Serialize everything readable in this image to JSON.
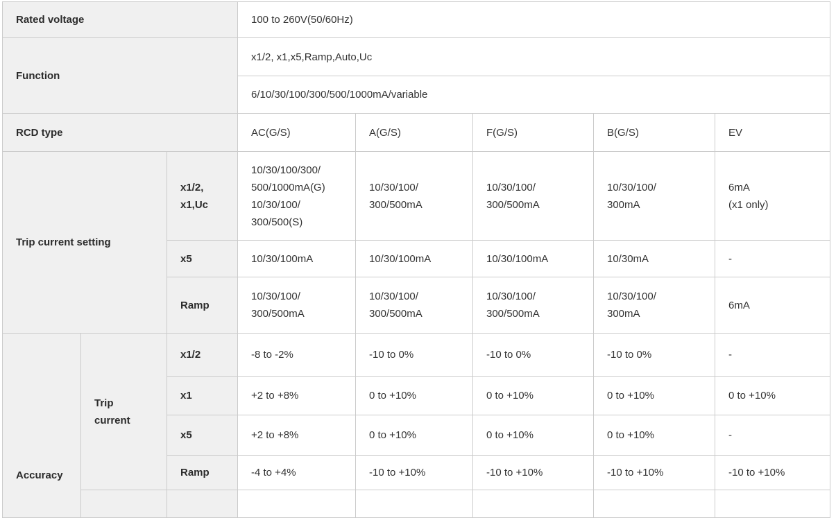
{
  "colors": {
    "header_bg": "#f0f0f0",
    "border": "#cbcbcb",
    "text": "#333333",
    "header_text": "#2b2b2b"
  },
  "table": {
    "rcd_type_columns": [
      "AC(G/S)",
      "A(G/S)",
      "F(G/S)",
      "B(G/S)",
      "EV"
    ],
    "cells": [
      {
        "r": 1,
        "c": 1,
        "cs": 3,
        "kind": "header",
        "name": "header-rated-voltage",
        "text": "Rated voltage"
      },
      {
        "r": 1,
        "c": 4,
        "cs": 5,
        "kind": "data",
        "name": "value-rated-voltage",
        "text": "100 to 260V(50/60Hz)"
      },
      {
        "r": 2,
        "c": 1,
        "rs": 2,
        "cs": 3,
        "kind": "header",
        "name": "header-function",
        "text": "Function"
      },
      {
        "r": 2,
        "c": 4,
        "cs": 5,
        "kind": "data",
        "name": "value-function-modes",
        "text": "x1/2, x1,x5,Ramp,Auto,Uc"
      },
      {
        "r": 3,
        "c": 4,
        "cs": 5,
        "kind": "data",
        "name": "value-function-currents",
        "text": "6/10/30/100/300/500/1000mA/variable"
      },
      {
        "r": 4,
        "c": 1,
        "cs": 3,
        "kind": "header",
        "name": "header-rcd-type",
        "text": "RCD type"
      },
      {
        "r": 4,
        "c": 4,
        "kind": "data",
        "name": "column-rcd-ac",
        "text": "AC(G/S)"
      },
      {
        "r": 4,
        "c": 5,
        "kind": "data",
        "name": "column-rcd-a",
        "text": "A(G/S)"
      },
      {
        "r": 4,
        "c": 6,
        "kind": "data",
        "name": "column-rcd-f",
        "text": "F(G/S)"
      },
      {
        "r": 4,
        "c": 7,
        "kind": "data",
        "name": "column-rcd-b",
        "text": "B(G/S)"
      },
      {
        "r": 4,
        "c": 8,
        "kind": "data",
        "name": "column-rcd-ev",
        "text": "EV"
      },
      {
        "r": 5,
        "c": 1,
        "rs": 3,
        "cs": 2,
        "kind": "header",
        "name": "header-trip-current-setting",
        "text": "Trip current setting"
      },
      {
        "r": 5,
        "c": 3,
        "kind": "header",
        "name": "subheader-setting-x12-x1-uc",
        "text": "x1/2,\nx1,Uc"
      },
      {
        "r": 5,
        "c": 4,
        "kind": "data",
        "name": "setting-x12-ac",
        "text": "10/30/100/300/\n500/1000mA(G)\n10/30/100/\n300/500(S)"
      },
      {
        "r": 5,
        "c": 5,
        "kind": "data",
        "name": "setting-x12-a",
        "text": "10/30/100/\n300/500mA"
      },
      {
        "r": 5,
        "c": 6,
        "kind": "data",
        "name": "setting-x12-f",
        "text": "10/30/100/\n300/500mA"
      },
      {
        "r": 5,
        "c": 7,
        "kind": "data",
        "name": "setting-x12-b",
        "text": "10/30/100/\n300mA"
      },
      {
        "r": 5,
        "c": 8,
        "kind": "data",
        "name": "setting-x12-ev",
        "text": "6mA\n(x1 only)"
      },
      {
        "r": 6,
        "c": 3,
        "kind": "header",
        "name": "subheader-setting-x5",
        "text": "x5"
      },
      {
        "r": 6,
        "c": 4,
        "kind": "data",
        "name": "setting-x5-ac",
        "text": "10/30/100mA"
      },
      {
        "r": 6,
        "c": 5,
        "kind": "data",
        "name": "setting-x5-a",
        "text": "10/30/100mA"
      },
      {
        "r": 6,
        "c": 6,
        "kind": "data",
        "name": "setting-x5-f",
        "text": "10/30/100mA"
      },
      {
        "r": 6,
        "c": 7,
        "kind": "data",
        "name": "setting-x5-b",
        "text": "10/30mA"
      },
      {
        "r": 6,
        "c": 8,
        "kind": "data",
        "name": "setting-x5-ev",
        "text": "-"
      },
      {
        "r": 7,
        "c": 3,
        "kind": "header",
        "name": "subheader-setting-ramp",
        "text": "Ramp"
      },
      {
        "r": 7,
        "c": 4,
        "kind": "data",
        "name": "setting-ramp-ac",
        "text": "10/30/100/\n300/500mA"
      },
      {
        "r": 7,
        "c": 5,
        "kind": "data",
        "name": "setting-ramp-a",
        "text": "10/30/100/\n300/500mA"
      },
      {
        "r": 7,
        "c": 6,
        "kind": "data",
        "name": "setting-ramp-f",
        "text": "10/30/100/\n300/500mA"
      },
      {
        "r": 7,
        "c": 7,
        "kind": "data",
        "name": "setting-ramp-b",
        "text": "10/30/100/\n300mA"
      },
      {
        "r": 7,
        "c": 8,
        "kind": "data",
        "name": "setting-ramp-ev",
        "text": "6mA"
      },
      {
        "r": 8,
        "c": 1,
        "rs": 5,
        "kind": "header",
        "name": "header-accuracy",
        "anchor": "bottom",
        "text": "Accuracy"
      },
      {
        "r": 8,
        "c": 2,
        "rs": 4,
        "kind": "header",
        "name": "header-trip-current",
        "text": "Trip\ncurrent"
      },
      {
        "r": 8,
        "c": 3,
        "kind": "header",
        "name": "subheader-accuracy-x12",
        "text": "x1/2"
      },
      {
        "r": 8,
        "c": 4,
        "kind": "data",
        "name": "accuracy-x12-ac",
        "text": "-8 to -2%"
      },
      {
        "r": 8,
        "c": 5,
        "kind": "data",
        "name": "accuracy-x12-a",
        "text": "-10 to 0%"
      },
      {
        "r": 8,
        "c": 6,
        "kind": "data",
        "name": "accuracy-x12-f",
        "text": "-10 to 0%"
      },
      {
        "r": 8,
        "c": 7,
        "kind": "data",
        "name": "accuracy-x12-b",
        "text": "-10 to 0%"
      },
      {
        "r": 8,
        "c": 8,
        "kind": "data",
        "name": "accuracy-x12-ev",
        "text": "-"
      },
      {
        "r": 9,
        "c": 3,
        "kind": "header",
        "name": "subheader-accuracy-x1",
        "text": "x1"
      },
      {
        "r": 9,
        "c": 4,
        "kind": "data",
        "name": "accuracy-x1-ac",
        "text": "+2 to +8%"
      },
      {
        "r": 9,
        "c": 5,
        "kind": "data",
        "name": "accuracy-x1-a",
        "text": "0 to +10%"
      },
      {
        "r": 9,
        "c": 6,
        "kind": "data",
        "name": "accuracy-x1-f",
        "text": "0 to +10%"
      },
      {
        "r": 9,
        "c": 7,
        "kind": "data",
        "name": "accuracy-x1-b",
        "text": "0 to +10%"
      },
      {
        "r": 9,
        "c": 8,
        "kind": "data",
        "name": "accuracy-x1-ev",
        "text": "0 to +10%"
      },
      {
        "r": 10,
        "c": 3,
        "kind": "header",
        "name": "subheader-accuracy-x5",
        "text": "x5"
      },
      {
        "r": 10,
        "c": 4,
        "kind": "data",
        "name": "accuracy-x5-ac",
        "text": "+2 to +8%"
      },
      {
        "r": 10,
        "c": 5,
        "kind": "data",
        "name": "accuracy-x5-a",
        "text": "0 to +10%"
      },
      {
        "r": 10,
        "c": 6,
        "kind": "data",
        "name": "accuracy-x5-f",
        "text": "0 to +10%"
      },
      {
        "r": 10,
        "c": 7,
        "kind": "data",
        "name": "accuracy-x5-b",
        "text": "0 to +10%"
      },
      {
        "r": 10,
        "c": 8,
        "kind": "data",
        "name": "accuracy-x5-ev",
        "text": "-"
      },
      {
        "r": 11,
        "c": 3,
        "kind": "header",
        "name": "subheader-accuracy-ramp",
        "text": "Ramp"
      },
      {
        "r": 11,
        "c": 4,
        "kind": "data",
        "name": "accuracy-ramp-ac",
        "text": "-4 to +4%"
      },
      {
        "r": 11,
        "c": 5,
        "kind": "data",
        "name": "accuracy-ramp-a",
        "text": "-10 to +10%"
      },
      {
        "r": 11,
        "c": 6,
        "kind": "data",
        "name": "accuracy-ramp-f",
        "text": "-10 to +10%"
      },
      {
        "r": 11,
        "c": 7,
        "kind": "data",
        "name": "accuracy-ramp-b",
        "text": "-10 to +10%"
      },
      {
        "r": 11,
        "c": 8,
        "kind": "data",
        "name": "accuracy-ramp-ev",
        "text": "-10 to +10%"
      },
      {
        "r": 12,
        "c": 2,
        "kind": "header",
        "name": "clipped-header-cell-1",
        "text": ""
      },
      {
        "r": 12,
        "c": 3,
        "kind": "header",
        "name": "clipped-header-cell-2",
        "text": ""
      },
      {
        "r": 12,
        "c": 4,
        "kind": "data",
        "name": "clipped-data-cell-ac",
        "text": ""
      },
      {
        "r": 12,
        "c": 5,
        "kind": "data",
        "name": "clipped-data-cell-a",
        "text": ""
      },
      {
        "r": 12,
        "c": 6,
        "kind": "data",
        "name": "clipped-data-cell-f",
        "text": ""
      },
      {
        "r": 12,
        "c": 7,
        "kind": "data",
        "name": "clipped-data-cell-b",
        "text": ""
      },
      {
        "r": 12,
        "c": 8,
        "kind": "data",
        "name": "clipped-data-cell-ev",
        "text": ""
      }
    ]
  }
}
